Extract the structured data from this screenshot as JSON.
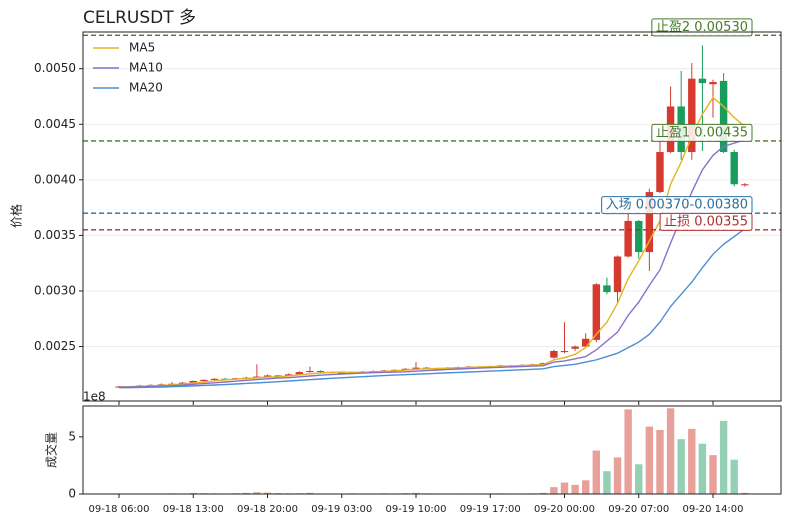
{
  "chart_data": [
    {
      "type": "candlestick",
      "title": "CELRUSDT  多",
      "y_label": "价格",
      "ylim": [
        0.00201,
        0.00533
      ],
      "yticks": [
        0.0025,
        {
          "value": 0.003,
          "label": "0.0030"
        },
        0.0035,
        {
          "value": 0.004,
          "label": "0.0040"
        },
        0.0045,
        {
          "value": 0.005,
          "label": "0.0050"
        }
      ],
      "grid": true,
      "legend": "upper left",
      "up_color": "#d63a2f",
      "down_color": "#1a9c5c",
      "open": [
        0.00214,
        0.00214,
        0.002138,
        0.00215,
        0.002155,
        0.00216,
        0.002165,
        0.002175,
        0.00219,
        0.0022,
        0.00221,
        0.002205,
        0.002215,
        0.00222,
        0.00223,
        0.00224,
        0.002235,
        0.00225,
        0.00227,
        0.00228,
        0.00227,
        0.002265,
        0.00226,
        0.00227,
        0.002275,
        0.00228,
        0.002285,
        0.00229,
        0.0023,
        0.00231,
        0.0023,
        0.002305,
        0.00231,
        0.002315,
        0.00232,
        0.002318,
        0.002322,
        0.00233,
        0.00233,
        0.002335,
        0.00234,
        0.0024,
        0.00245,
        0.00248,
        0.0025,
        0.00256,
        0.00305,
        0.00299,
        0.00331,
        0.00363,
        0.00335,
        0.00389,
        0.00425,
        0.00466,
        0.00425,
        0.00491,
        0.00486,
        0.00489,
        0.00425,
        0.00395
      ],
      "high": [
        0.002145,
        0.002142,
        0.002155,
        0.00216,
        0.002168,
        0.00218,
        0.00218,
        0.002195,
        0.002205,
        0.002215,
        0.002218,
        0.00222,
        0.002228,
        0.00234,
        0.002248,
        0.002245,
        0.002258,
        0.002278,
        0.00232,
        0.002285,
        0.002275,
        0.00227,
        0.002275,
        0.00228,
        0.002285,
        0.00229,
        0.002295,
        0.002305,
        0.00236,
        0.002315,
        0.00231,
        0.002315,
        0.00232,
        0.002325,
        0.002325,
        0.002328,
        0.002335,
        0.002335,
        0.00234,
        0.002345,
        0.002355,
        0.00247,
        0.00272,
        0.00251,
        0.00262,
        0.00307,
        0.00312,
        0.00332,
        0.0037,
        0.00364,
        0.00392,
        0.00436,
        0.00484,
        0.00498,
        0.00505,
        0.00521,
        0.0049,
        0.00496,
        0.00427,
        0.00397
      ],
      "low": [
        0.002135,
        0.002132,
        0.002135,
        0.002145,
        0.00215,
        0.002155,
        0.00216,
        0.00217,
        0.002185,
        0.002195,
        0.0022,
        0.0022,
        0.00221,
        0.002215,
        0.002225,
        0.00223,
        0.00223,
        0.002245,
        0.002265,
        0.002265,
        0.00226,
        0.002255,
        0.002255,
        0.002265,
        0.00227,
        0.002275,
        0.00228,
        0.002285,
        0.002295,
        0.002295,
        0.002295,
        0.0023,
        0.002305,
        0.00231,
        0.002312,
        0.002315,
        0.002318,
        0.002325,
        0.002325,
        0.00233,
        0.002335,
        0.00239,
        0.00244,
        0.00246,
        0.00249,
        0.00254,
        0.00297,
        0.00289,
        0.0033,
        0.00329,
        0.00318,
        0.00388,
        0.00424,
        0.00418,
        0.00418,
        0.00426,
        0.00456,
        0.00424,
        0.00394,
        0.00394
      ],
      "close": [
        0.00214,
        0.002138,
        0.00215,
        0.002155,
        0.00216,
        0.002165,
        0.002175,
        0.00219,
        0.0022,
        0.00221,
        0.002205,
        0.002215,
        0.00222,
        0.00223,
        0.00224,
        0.002235,
        0.00225,
        0.00227,
        0.00228,
        0.00227,
        0.002265,
        0.00226,
        0.00227,
        0.002275,
        0.00228,
        0.002285,
        0.00229,
        0.0023,
        0.00231,
        0.0023,
        0.002305,
        0.00231,
        0.002315,
        0.00232,
        0.002318,
        0.002322,
        0.00233,
        0.00233,
        0.002335,
        0.00234,
        0.00235,
        0.00246,
        0.00246,
        0.0025,
        0.00257,
        0.00306,
        0.00299,
        0.00331,
        0.00363,
        0.00335,
        0.00389,
        0.00425,
        0.00466,
        0.00425,
        0.00491,
        0.00487,
        0.00488,
        0.00425,
        0.00396,
        0.00396
      ],
      "series": [
        {
          "name": "MA5",
          "color": "#e6b422",
          "values": [
            0.002138,
            0.002139,
            0.002142,
            0.002146,
            0.00215,
            0.002155,
            0.002162,
            0.002172,
            0.00218,
            0.002192,
            0.0022,
            0.002206,
            0.002212,
            0.002218,
            0.002225,
            0.002228,
            0.002235,
            0.002245,
            0.002255,
            0.002262,
            0.002268,
            0.00227,
            0.002268,
            0.002268,
            0.002272,
            0.002276,
            0.002282,
            0.002288,
            0.002295,
            0.0023,
            0.002303,
            0.002306,
            0.002308,
            0.002312,
            0.002316,
            0.002319,
            0.002322,
            0.002326,
            0.002329,
            0.002333,
            0.002338,
            0.00238,
            0.0024,
            0.00243,
            0.00249,
            0.00261,
            0.00272,
            0.00289,
            0.00311,
            0.00327,
            0.00345,
            0.00363,
            0.00396,
            0.00416,
            0.00439,
            0.00459,
            0.00474,
            0.00466,
            0.00456,
            0.00448
          ]
        },
        {
          "name": "MA10",
          "color": "#8a6fc8",
          "values": [
            0.002135,
            0.002136,
            0.002138,
            0.00214,
            0.002143,
            0.002148,
            0.002153,
            0.00216,
            0.002167,
            0.002174,
            0.002181,
            0.002188,
            0.002196,
            0.002203,
            0.00221,
            0.002216,
            0.00222,
            0.002228,
            0.002235,
            0.002242,
            0.002248,
            0.002253,
            0.002257,
            0.002261,
            0.002265,
            0.002268,
            0.00227,
            0.002273,
            0.002278,
            0.002284,
            0.002289,
            0.002294,
            0.002298,
            0.002302,
            0.002306,
            0.00231,
            0.002313,
            0.002317,
            0.00232,
            0.002324,
            0.002328,
            0.00236,
            0.00237,
            0.00239,
            0.00241,
            0.00247,
            0.00255,
            0.00263,
            0.00278,
            0.0029,
            0.00305,
            0.00319,
            0.00343,
            0.00366,
            0.00389,
            0.00409,
            0.00422,
            0.0043,
            0.00433,
            0.00436
          ]
        },
        {
          "name": "MA20",
          "color": "#4a8fd4",
          "values": [
            0.00213,
            0.00213,
            0.002132,
            0.002134,
            0.002136,
            0.002139,
            0.002142,
            0.002146,
            0.00215,
            0.002154,
            0.002158,
            0.002163,
            0.002168,
            0.002173,
            0.002178,
            0.002184,
            0.00219,
            0.002196,
            0.002202,
            0.002208,
            0.002214,
            0.002219,
            0.002224,
            0.002229,
            0.002234,
            0.002239,
            0.002243,
            0.002247,
            0.002251,
            0.002255,
            0.002259,
            0.002263,
            0.002267,
            0.002271,
            0.002275,
            0.002279,
            0.002283,
            0.002287,
            0.002291,
            0.002295,
            0.0023,
            0.00232,
            0.00233,
            0.00234,
            0.00236,
            0.00238,
            0.00241,
            0.00244,
            0.00249,
            0.00254,
            0.00261,
            0.00272,
            0.00286,
            0.00297,
            0.00308,
            0.00321,
            0.00333,
            0.00342,
            0.00349,
            0.00356
          ]
        }
      ],
      "levels": [
        {
          "label": "止盈2 0.00530",
          "value": 0.0053,
          "color": "#4a7a2a"
        },
        {
          "label": "止盈1 0.00435",
          "value": 0.00435,
          "color": "#4a7a2a"
        },
        {
          "label": "入场 0.00370-0.00380",
          "value": 0.0037,
          "color": "#2a6fa0"
        },
        {
          "label": "止损 0.00355",
          "value": 0.00355,
          "color": "#b03030"
        }
      ]
    },
    {
      "type": "bar",
      "y_label": "成交量",
      "offset_label": "1e8",
      "ylim": [
        0,
        7.7
      ],
      "yticks": [
        0,
        5
      ],
      "up_color": "#e8a09a",
      "down_color": "#95d0b5",
      "categories": [
        "09-18 06:00",
        null,
        null,
        null,
        null,
        null,
        null,
        "09-18 13:00",
        null,
        null,
        null,
        null,
        null,
        null,
        "09-18 20:00",
        null,
        null,
        null,
        null,
        null,
        null,
        "09-19 03:00",
        null,
        null,
        null,
        null,
        null,
        null,
        "09-19 10:00",
        null,
        null,
        null,
        null,
        null,
        null,
        "09-19 17:00",
        null,
        null,
        null,
        null,
        null,
        null,
        "09-20 00:00",
        null,
        null,
        null,
        null,
        null,
        null,
        "09-20 07:00",
        null,
        null,
        null,
        null,
        null,
        null,
        "09-20 14:00",
        null,
        null,
        null
      ],
      "values": [
        0.05,
        0.03,
        0.04,
        0.05,
        0.04,
        0.06,
        0.05,
        0.08,
        0.07,
        0.06,
        0.05,
        0.07,
        0.1,
        0.15,
        0.12,
        0.08,
        0.06,
        0.07,
        0.1,
        0.05,
        0.05,
        0.04,
        0.06,
        0.05,
        0.05,
        0.06,
        0.05,
        0.07,
        0.1,
        0.06,
        0.05,
        0.05,
        0.05,
        0.04,
        0.05,
        0.05,
        0.06,
        0.05,
        0.05,
        0.06,
        0.1,
        0.6,
        1.0,
        0.8,
        1.2,
        3.8,
        2.0,
        3.2,
        7.4,
        2.6,
        5.9,
        5.6,
        7.5,
        4.8,
        5.7,
        4.4,
        3.4,
        6.4,
        3.0,
        0.1
      ]
    }
  ]
}
